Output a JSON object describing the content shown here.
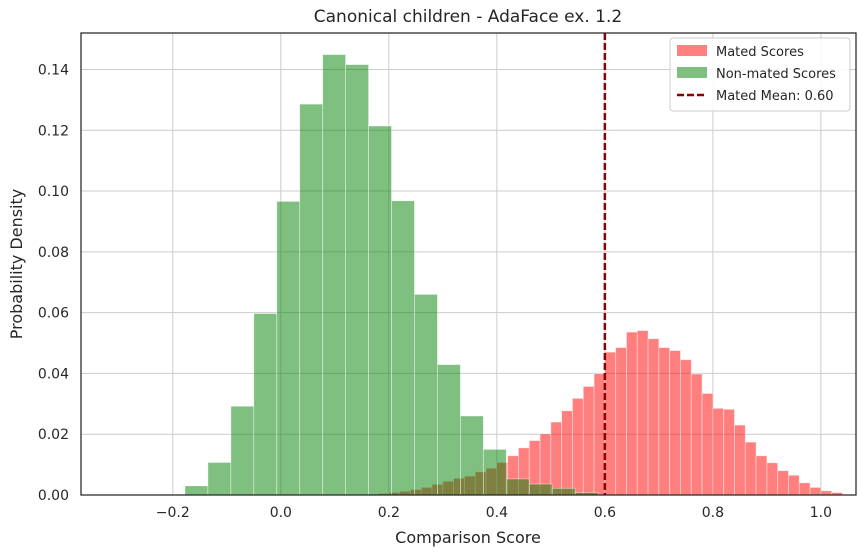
{
  "chart_data": {
    "type": "bar",
    "title": "Canonical children - AdaFace ex. 1.2",
    "xlabel": "Comparison Score",
    "ylabel": "Probability Density",
    "xlim": [
      -0.37,
      1.065
    ],
    "ylim": [
      0,
      0.152
    ],
    "grid": true,
    "legend_position": "top-right",
    "xticks": [
      -0.2,
      0.0,
      0.2,
      0.4,
      0.6,
      0.8,
      1.0
    ],
    "xtick_labels": [
      "−0.2",
      "0.0",
      "0.2",
      "0.4",
      "0.6",
      "0.8",
      "1.0"
    ],
    "yticks": [
      0.0,
      0.02,
      0.04,
      0.06,
      0.08,
      0.1,
      0.12,
      0.14
    ],
    "ytick_labels": [
      "0.00",
      "0.02",
      "0.04",
      "0.06",
      "0.08",
      "0.10",
      "0.12",
      "0.14"
    ],
    "series": [
      {
        "name": "Mated Scores",
        "color": "#ff0000",
        "opacity": 0.5,
        "bin_start": 0.14,
        "bin_width": 0.02,
        "values": [
          0.0002,
          0.0003,
          0.0005,
          0.0008,
          0.0012,
          0.0018,
          0.0025,
          0.0035,
          0.0045,
          0.0055,
          0.0062,
          0.0076,
          0.0088,
          0.0107,
          0.0129,
          0.0155,
          0.0179,
          0.0201,
          0.024,
          0.0277,
          0.0318,
          0.0357,
          0.0399,
          0.047,
          0.0485,
          0.0536,
          0.0541,
          0.0514,
          0.0485,
          0.0475,
          0.0445,
          0.0398,
          0.0334,
          0.0285,
          0.0282,
          0.023,
          0.0174,
          0.0129,
          0.0106,
          0.008,
          0.0065,
          0.004,
          0.0025,
          0.0014,
          0.0008
        ]
      },
      {
        "name": "Non-mated Scores",
        "color": "#008000",
        "opacity": 0.5,
        "bin_start": -0.22,
        "bin_width": 0.0425,
        "values": [
          0.0002,
          0.003,
          0.0107,
          0.0292,
          0.0597,
          0.0966,
          0.1286,
          0.1449,
          0.1416,
          0.1214,
          0.0968,
          0.066,
          0.0429,
          0.026,
          0.015,
          0.0053,
          0.0036,
          0.0022,
          0.0008
        ]
      }
    ],
    "reference_line": {
      "name": "Mated Mean: 0.60",
      "x": 0.6,
      "color": "#8b0000",
      "style": "dashed"
    }
  }
}
